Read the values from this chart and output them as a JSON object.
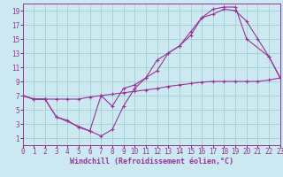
{
  "xlabel": "Windchill (Refroidissement éolien,°C)",
  "background_color": "#cce8f0",
  "grid_color": "#99cccc",
  "line_color": "#993399",
  "xlim": [
    0,
    23
  ],
  "ylim": [
    0,
    20
  ],
  "xticks": [
    0,
    1,
    2,
    3,
    4,
    5,
    6,
    7,
    8,
    9,
    10,
    11,
    12,
    13,
    14,
    15,
    16,
    17,
    18,
    19,
    20,
    21,
    22,
    23
  ],
  "yticks": [
    1,
    3,
    5,
    7,
    9,
    11,
    13,
    15,
    17,
    19
  ],
  "line1_x": [
    0,
    1,
    2,
    3,
    4,
    5,
    6,
    7,
    8,
    9,
    10,
    11,
    12,
    13,
    14,
    15,
    16,
    17,
    18,
    19,
    20,
    22,
    23
  ],
  "line1_y": [
    7,
    6.5,
    6.5,
    4,
    3.5,
    2.5,
    2.0,
    1.3,
    2.2,
    5.5,
    8.0,
    9.5,
    10.5,
    13.0,
    14.0,
    16.0,
    18.0,
    19.2,
    19.5,
    19.5,
    15.0,
    12.5,
    9.5
  ],
  "line2_x": [
    0,
    1,
    2,
    3,
    6,
    7,
    8,
    9,
    10,
    11,
    12,
    13,
    14,
    15,
    16,
    17,
    18,
    19,
    20,
    21,
    22,
    23
  ],
  "line2_y": [
    7,
    6.5,
    6.5,
    4,
    2.0,
    7.0,
    5.5,
    8.0,
    8.5,
    9.5,
    12.0,
    13.0,
    14.0,
    15.5,
    18.0,
    18.5,
    19.2,
    19.0,
    17.5,
    15.0,
    12.5,
    9.5
  ],
  "line3_x": [
    0,
    1,
    2,
    3,
    4,
    5,
    6,
    7,
    8,
    9,
    10,
    11,
    12,
    13,
    14,
    15,
    16,
    17,
    18,
    19,
    20,
    21,
    22,
    23
  ],
  "line3_y": [
    7,
    6.5,
    6.5,
    6.5,
    6.5,
    6.5,
    6.8,
    7.0,
    7.2,
    7.4,
    7.6,
    7.8,
    8.0,
    8.3,
    8.5,
    8.7,
    8.9,
    9.0,
    9.0,
    9.0,
    9.0,
    9.0,
    9.2,
    9.5
  ],
  "tick_fontsize": 5.5,
  "xlabel_fontsize": 6.0
}
